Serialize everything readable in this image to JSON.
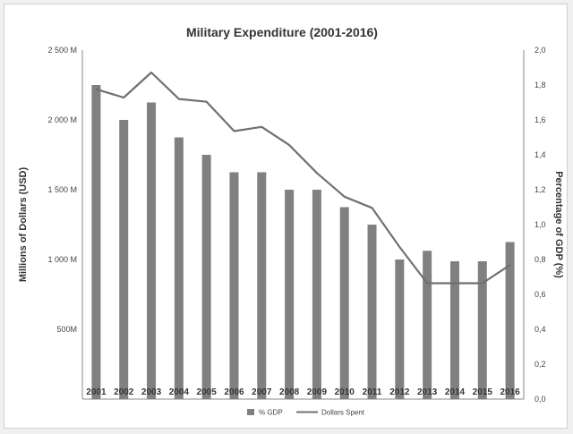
{
  "chart_data": {
    "type": "bar",
    "title": "Military Expenditure (2001-2016)",
    "ylabel": "Millions of Dollars (USD)",
    "y2label": "Percentage of GDP (%)",
    "categories": [
      "2001",
      "2002",
      "2003",
      "2004",
      "2005",
      "2006",
      "2007",
      "2008",
      "2009",
      "2010",
      "2011",
      "2012",
      "2013",
      "2014",
      "2015",
      "2016"
    ],
    "yticks": [
      "",
      "500M",
      "1 000 M",
      "1 500 M",
      "2 000 M",
      "2 500 M"
    ],
    "y2ticks": [
      "0,0",
      "0,2",
      "0,4",
      "0,6",
      "0,8",
      "1,0",
      "1,2",
      "1,4",
      "1,6",
      "1,8",
      "2,0"
    ],
    "ylim": [
      0,
      2500
    ],
    "y2lim": [
      0,
      2.0
    ],
    "grid": false,
    "legend_position": "bottom",
    "series": [
      {
        "name": "% GDP",
        "type": "bar",
        "axis": "right",
        "color": "#808080",
        "values": [
          1.8,
          1.6,
          1.7,
          1.5,
          1.4,
          1.3,
          1.3,
          1.2,
          1.2,
          1.1,
          1.0,
          0.8,
          0.85,
          0.79,
          0.79,
          0.9
        ]
      },
      {
        "name": "Dollars Spent",
        "type": "line",
        "axis": "left",
        "color": "#707070",
        "values": [
          2220,
          2160,
          2340,
          2150,
          2130,
          1920,
          1950,
          1820,
          1620,
          1450,
          1370,
          1090,
          830,
          830,
          830,
          960
        ]
      }
    ]
  }
}
